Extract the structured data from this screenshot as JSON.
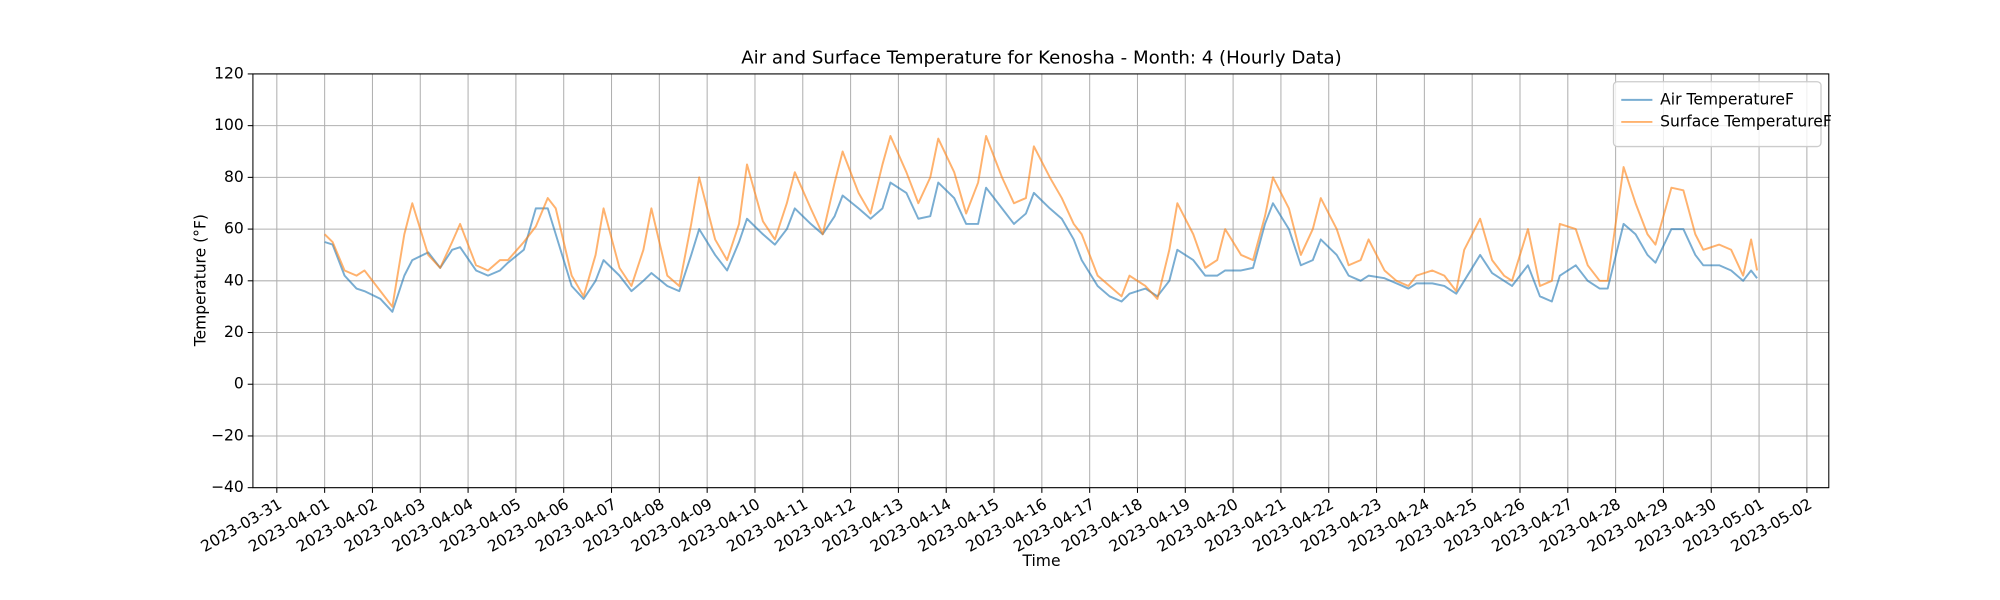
{
  "chart_data": {
    "type": "line",
    "title": "Air and Surface Temperature for Kenosha - Month: 4 (Hourly Data)",
    "xlabel": "Time",
    "ylabel": "Temperature (°F)",
    "x": [
      "2023-04-01 00:00",
      "2023-04-01 04:00",
      "2023-04-01 10:00",
      "2023-04-01 16:00",
      "2023-04-01 20:00",
      "2023-04-02 04:00",
      "2023-04-02 10:00",
      "2023-04-02 16:00",
      "2023-04-02 20:00",
      "2023-04-03 04:00",
      "2023-04-03 10:00",
      "2023-04-03 16:00",
      "2023-04-03 20:00",
      "2023-04-04 04:00",
      "2023-04-04 10:00",
      "2023-04-04 16:00",
      "2023-04-04 20:00",
      "2023-04-05 04:00",
      "2023-04-05 10:00",
      "2023-04-05 16:00",
      "2023-04-05 20:00",
      "2023-04-06 04:00",
      "2023-04-06 10:00",
      "2023-04-06 16:00",
      "2023-04-06 20:00",
      "2023-04-07 04:00",
      "2023-04-07 10:00",
      "2023-04-07 16:00",
      "2023-04-07 20:00",
      "2023-04-08 04:00",
      "2023-04-08 10:00",
      "2023-04-08 16:00",
      "2023-04-08 20:00",
      "2023-04-09 04:00",
      "2023-04-09 10:00",
      "2023-04-09 16:00",
      "2023-04-09 20:00",
      "2023-04-10 04:00",
      "2023-04-10 10:00",
      "2023-04-10 16:00",
      "2023-04-10 20:00",
      "2023-04-11 04:00",
      "2023-04-11 10:00",
      "2023-04-11 16:00",
      "2023-04-11 20:00",
      "2023-04-12 04:00",
      "2023-04-12 10:00",
      "2023-04-12 16:00",
      "2023-04-12 20:00",
      "2023-04-13 04:00",
      "2023-04-13 10:00",
      "2023-04-13 16:00",
      "2023-04-13 20:00",
      "2023-04-14 04:00",
      "2023-04-14 10:00",
      "2023-04-14 16:00",
      "2023-04-14 20:00",
      "2023-04-15 04:00",
      "2023-04-15 10:00",
      "2023-04-15 16:00",
      "2023-04-15 20:00",
      "2023-04-16 04:00",
      "2023-04-16 10:00",
      "2023-04-16 16:00",
      "2023-04-16 20:00",
      "2023-04-17 04:00",
      "2023-04-17 10:00",
      "2023-04-17 16:00",
      "2023-04-17 20:00",
      "2023-04-18 04:00",
      "2023-04-18 10:00",
      "2023-04-18 16:00",
      "2023-04-18 20:00",
      "2023-04-19 04:00",
      "2023-04-19 10:00",
      "2023-04-19 16:00",
      "2023-04-19 20:00",
      "2023-04-20 04:00",
      "2023-04-20 10:00",
      "2023-04-20 16:00",
      "2023-04-20 20:00",
      "2023-04-21 04:00",
      "2023-04-21 10:00",
      "2023-04-21 16:00",
      "2023-04-21 20:00",
      "2023-04-22 04:00",
      "2023-04-22 10:00",
      "2023-04-22 16:00",
      "2023-04-22 20:00",
      "2023-04-23 04:00",
      "2023-04-23 10:00",
      "2023-04-23 16:00",
      "2023-04-23 20:00",
      "2023-04-24 04:00",
      "2023-04-24 10:00",
      "2023-04-24 16:00",
      "2023-04-24 20:00",
      "2023-04-25 04:00",
      "2023-04-25 10:00",
      "2023-04-25 16:00",
      "2023-04-25 20:00",
      "2023-04-26 04:00",
      "2023-04-26 10:00",
      "2023-04-26 16:00",
      "2023-04-26 20:00",
      "2023-04-27 04:00",
      "2023-04-27 10:00",
      "2023-04-27 16:00",
      "2023-04-27 20:00",
      "2023-04-28 04:00",
      "2023-04-28 10:00",
      "2023-04-28 16:00",
      "2023-04-28 20:00",
      "2023-04-29 04:00",
      "2023-04-29 10:00",
      "2023-04-29 16:00",
      "2023-04-29 20:00",
      "2023-04-30 04:00",
      "2023-04-30 10:00",
      "2023-04-30 16:00",
      "2023-04-30 20:00",
      "2023-04-30 23:00"
    ],
    "series": [
      {
        "name": "Air TemperatureF",
        "color": "#1f77b4",
        "values": [
          55,
          54,
          42,
          37,
          36,
          33,
          28,
          42,
          48,
          51,
          45,
          52,
          53,
          44,
          42,
          44,
          47,
          52,
          68,
          68,
          58,
          38,
          33,
          40,
          48,
          42,
          36,
          40,
          43,
          38,
          36,
          50,
          60,
          50,
          44,
          55,
          64,
          58,
          54,
          60,
          68,
          62,
          58,
          65,
          73,
          68,
          64,
          68,
          78,
          74,
          64,
          65,
          78,
          72,
          62,
          62,
          76,
          68,
          62,
          66,
          74,
          68,
          64,
          56,
          48,
          38,
          34,
          32,
          35,
          37,
          34,
          40,
          52,
          48,
          42,
          42,
          44,
          44,
          45,
          62,
          70,
          60,
          46,
          48,
          56,
          50,
          42,
          40,
          42,
          41,
          39,
          37,
          39,
          39,
          38,
          35,
          40,
          50,
          43,
          40,
          38,
          46,
          34,
          32,
          42,
          46,
          40,
          37,
          37,
          62,
          58,
          50,
          47,
          60,
          60,
          50,
          46,
          46,
          44,
          40,
          44,
          41
        ]
      },
      {
        "name": "Surface TemperatureF",
        "color": "#ff7f0e",
        "values": [
          58,
          55,
          44,
          42,
          44,
          36,
          30,
          58,
          70,
          50,
          45,
          55,
          62,
          46,
          44,
          48,
          48,
          55,
          61,
          72,
          68,
          42,
          34,
          50,
          68,
          45,
          38,
          52,
          68,
          42,
          38,
          62,
          80,
          56,
          48,
          62,
          85,
          63,
          56,
          70,
          82,
          68,
          58,
          78,
          90,
          74,
          66,
          85,
          96,
          82,
          70,
          80,
          95,
          82,
          66,
          78,
          96,
          80,
          70,
          72,
          92,
          80,
          72,
          62,
          58,
          42,
          38,
          34,
          42,
          38,
          33,
          52,
          70,
          58,
          45,
          48,
          60,
          50,
          48,
          65,
          80,
          68,
          50,
          60,
          72,
          60,
          46,
          48,
          56,
          44,
          40,
          38,
          42,
          44,
          42,
          36,
          52,
          64,
          48,
          42,
          40,
          60,
          38,
          40,
          62,
          60,
          46,
          40,
          40,
          84,
          70,
          58,
          54,
          76,
          75,
          58,
          52,
          54,
          52,
          42,
          56,
          44
        ]
      }
    ],
    "xlim": [
      "2023-03-30 12:00",
      "2023-05-02 11:00"
    ],
    "xticks": [
      "2023-03-31",
      "2023-04-01",
      "2023-04-02",
      "2023-04-03",
      "2023-04-04",
      "2023-04-05",
      "2023-04-06",
      "2023-04-07",
      "2023-04-08",
      "2023-04-09",
      "2023-04-10",
      "2023-04-11",
      "2023-04-12",
      "2023-04-13",
      "2023-04-14",
      "2023-04-15",
      "2023-04-16",
      "2023-04-17",
      "2023-04-18",
      "2023-04-19",
      "2023-04-20",
      "2023-04-21",
      "2023-04-22",
      "2023-04-23",
      "2023-04-24",
      "2023-04-25",
      "2023-04-26",
      "2023-04-27",
      "2023-04-28",
      "2023-04-29",
      "2023-04-30",
      "2023-05-01",
      "2023-05-02"
    ],
    "ylim": [
      -40,
      120
    ],
    "yticks": [
      {
        "value": -40,
        "label": "−40"
      },
      {
        "value": -20,
        "label": "−20"
      },
      0,
      20,
      40,
      60,
      80,
      100,
      120
    ],
    "grid": true,
    "legend": "upper right"
  }
}
